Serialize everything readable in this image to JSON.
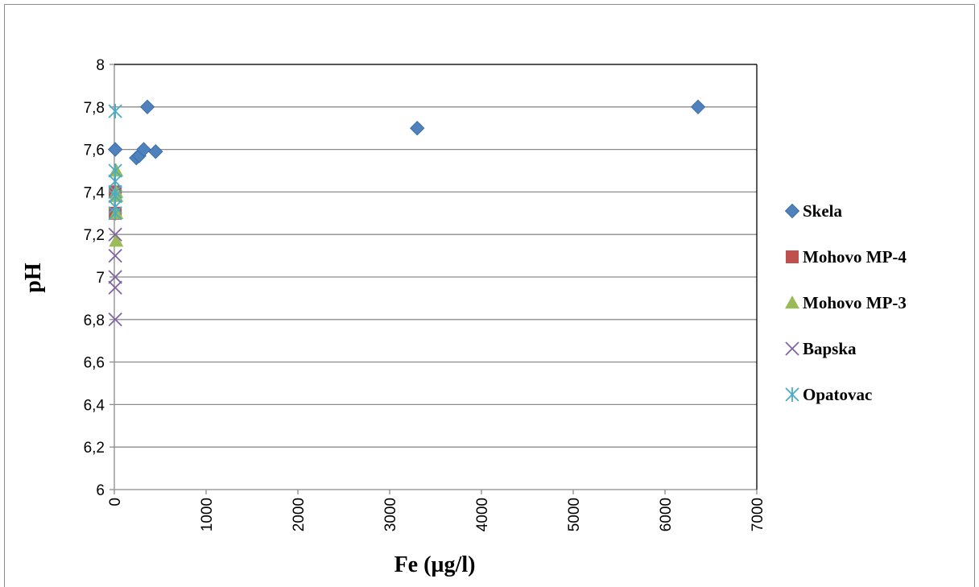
{
  "chart_data": {
    "type": "scatter",
    "title": "",
    "xlabel": "Fe (µg/l)",
    "ylabel": "pH",
    "xlim": [
      0,
      7000
    ],
    "ylim": [
      6,
      8
    ],
    "x_ticks": [
      "0",
      "1000",
      "2000",
      "3000",
      "4000",
      "5000",
      "6000",
      "7000"
    ],
    "y_ticks": [
      "6",
      "6,2",
      "6,4",
      "6,6",
      "6,8",
      "7",
      "7,2",
      "7,4",
      "7,6",
      "7,8",
      "8"
    ],
    "grid": "horizontal",
    "legend_position": "right",
    "series": [
      {
        "name": "Skela",
        "marker": "diamond",
        "color": "#4f81bd",
        "points": [
          [
            10,
            7.6
          ],
          [
            360,
            7.8
          ],
          [
            240,
            7.56
          ],
          [
            270,
            7.57
          ],
          [
            320,
            7.6
          ],
          [
            450,
            7.59
          ],
          [
            3300,
            7.7
          ],
          [
            6360,
            7.8
          ]
        ]
      },
      {
        "name": "Mohovo MP-4",
        "marker": "square",
        "color": "#c0504d",
        "points": [
          [
            10,
            7.4
          ],
          [
            10,
            7.3
          ]
        ]
      },
      {
        "name": "Mohovo MP-3",
        "marker": "triangle",
        "color": "#9bbb59",
        "points": [
          [
            20,
            7.5
          ],
          [
            20,
            7.4
          ],
          [
            20,
            7.38
          ],
          [
            20,
            7.3
          ],
          [
            20,
            7.17
          ]
        ]
      },
      {
        "name": "Bapska",
        "marker": "x",
        "color": "#8064a2",
        "points": [
          [
            10,
            7.2
          ],
          [
            10,
            7.1
          ],
          [
            10,
            7.0
          ],
          [
            10,
            6.95
          ],
          [
            10,
            6.8
          ]
        ]
      },
      {
        "name": "Opatovac",
        "marker": "star",
        "color": "#4bacc6",
        "points": [
          [
            10,
            7.78
          ],
          [
            10,
            7.5
          ],
          [
            10,
            7.45
          ],
          [
            10,
            7.4
          ],
          [
            10,
            7.38
          ],
          [
            10,
            7.33
          ],
          [
            10,
            7.3
          ]
        ]
      }
    ]
  }
}
